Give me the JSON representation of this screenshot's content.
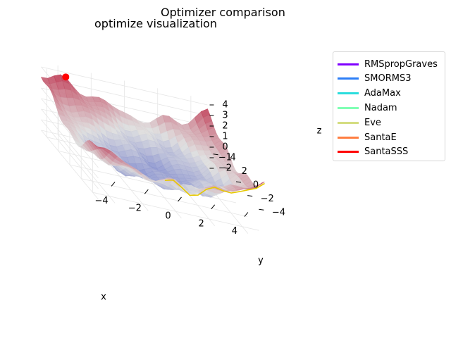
{
  "chart_data": {
    "type": "surface3d",
    "suptitle": "Optimizer comparison",
    "title": "optimize visualization",
    "xlabel": "x",
    "ylabel": "y",
    "zlabel": "z",
    "xlim": [
      -5,
      5
    ],
    "ylim": [
      -5,
      5
    ],
    "zlim": [
      -2,
      4.5
    ],
    "xticks": [
      "−4",
      "−2",
      "0",
      "2",
      "4"
    ],
    "yticks": [
      "−4",
      "−2",
      "0",
      "2",
      "4"
    ],
    "zticks": [
      "−2",
      "−1",
      "0",
      "1",
      "2",
      "3",
      "4"
    ],
    "grid": true,
    "legend_position": "upper right, outside plot",
    "colormap": "coolwarm",
    "series": [
      {
        "name": "RMSpropGraves",
        "color": "#8000ff"
      },
      {
        "name": "SMORMS3",
        "color": "#2c7ef7"
      },
      {
        "name": "AdaMax",
        "color": "#2adddd"
      },
      {
        "name": "Nadam",
        "color": "#80ffb4"
      },
      {
        "name": "Eve",
        "color": "#d4dd80"
      },
      {
        "name": "SantaE",
        "color": "#ff7e41"
      },
      {
        "name": "SantaSSS",
        "color": "#ff0000"
      }
    ],
    "marker": {
      "x": -3.8,
      "y": 4.2,
      "z": 4.0,
      "color": "#ff0000"
    }
  }
}
